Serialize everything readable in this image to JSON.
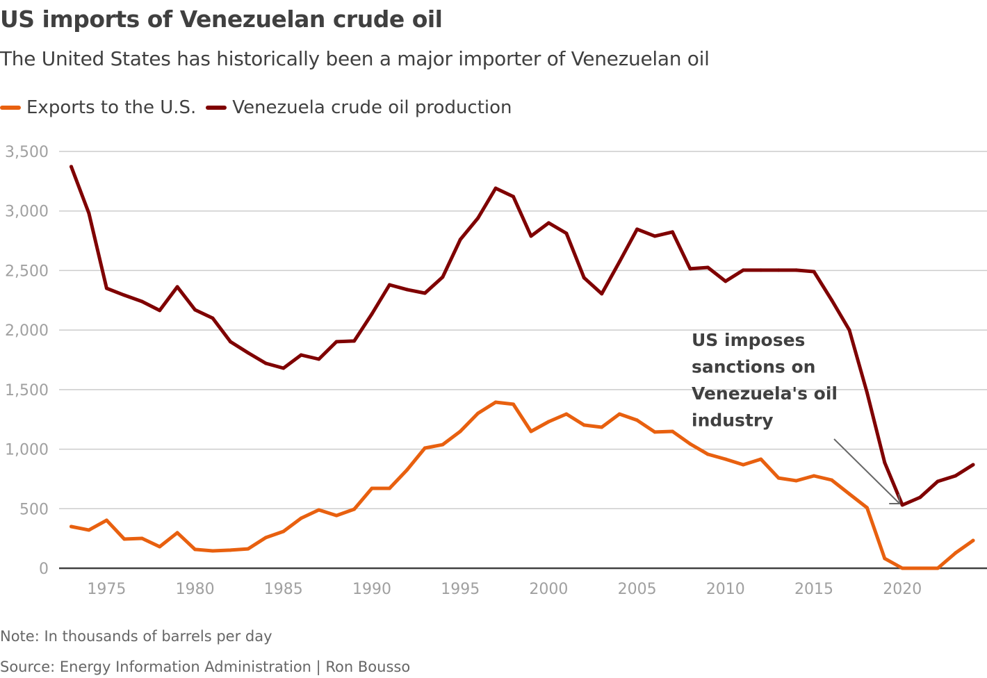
{
  "chart_data": {
    "type": "line",
    "title": "US imports of Venezuelan crude oil",
    "subtitle": "The United States has historically been a major importer of Venezuelan oil",
    "x": [
      1973,
      1974,
      1975,
      1976,
      1977,
      1978,
      1979,
      1980,
      1981,
      1982,
      1983,
      1984,
      1985,
      1986,
      1987,
      1988,
      1989,
      1990,
      1991,
      1992,
      1993,
      1994,
      1995,
      1996,
      1997,
      1998,
      1999,
      2000,
      2001,
      2002,
      2003,
      2004,
      2005,
      2006,
      2007,
      2008,
      2009,
      2010,
      2011,
      2012,
      2013,
      2014,
      2015,
      2016,
      2017,
      2018,
      2019,
      2020,
      2021,
      2022,
      2023,
      2024
    ],
    "series": [
      {
        "name": "Exports to the U.S.",
        "color": "#e8600f",
        "values": [
          350,
          321,
          403,
          245,
          251,
          181,
          298,
          158,
          146,
          152,
          163,
          257,
          309,
          420,
          490,
          443,
          496,
          671,
          671,
          828,
          1009,
          1038,
          1149,
          1301,
          1394,
          1377,
          1149,
          1231,
          1295,
          1202,
          1184,
          1295,
          1243,
          1144,
          1149,
          1044,
          957,
          916,
          869,
          916,
          758,
          735,
          776,
          741,
          624,
          508,
          82,
          0,
          0,
          0,
          128,
          233
        ]
      },
      {
        "name": "Venezuela crude oil production",
        "color": "#7f0000",
        "values": [
          3372,
          2981,
          2351,
          2293,
          2240,
          2165,
          2363,
          2170,
          2100,
          1902,
          1809,
          1721,
          1680,
          1791,
          1756,
          1902,
          1908,
          2135,
          2380,
          2340,
          2310,
          2445,
          2760,
          2940,
          3191,
          3121,
          2789,
          2900,
          2812,
          2439,
          2305,
          2573,
          2847,
          2789,
          2824,
          2515,
          2526,
          2410,
          2503,
          2503,
          2503,
          2503,
          2491,
          2252,
          2001,
          1476,
          887,
          531,
          595,
          729,
          776,
          869
        ]
      }
    ],
    "ylim": [
      0,
      3500
    ],
    "xlim": [
      1973,
      2024
    ],
    "yticks": [
      0,
      500,
      1000,
      1500,
      2000,
      2500,
      3000,
      3500
    ],
    "ytick_labels": [
      "0",
      "500",
      "1,000",
      "1,500",
      "2,000",
      "2,500",
      "3,000",
      "3,500"
    ],
    "xticks": [
      1975,
      1980,
      1985,
      1990,
      1995,
      2000,
      2005,
      2010,
      2015,
      2020
    ],
    "xtick_labels": [
      "1975",
      "1980",
      "1985",
      "1990",
      "1995",
      "2000",
      "2005",
      "2010",
      "2015",
      "2020"
    ],
    "grid": true,
    "legend_placement": "top-left",
    "annotation": {
      "lines": [
        "US imposes",
        "sanctions on",
        "Venezuela's oil",
        "industry"
      ],
      "x": 2020,
      "y": 531
    },
    "note": "Note: In thousands of barrels per day",
    "source": "Source: Energy Information Administration | Ron Bousso"
  }
}
